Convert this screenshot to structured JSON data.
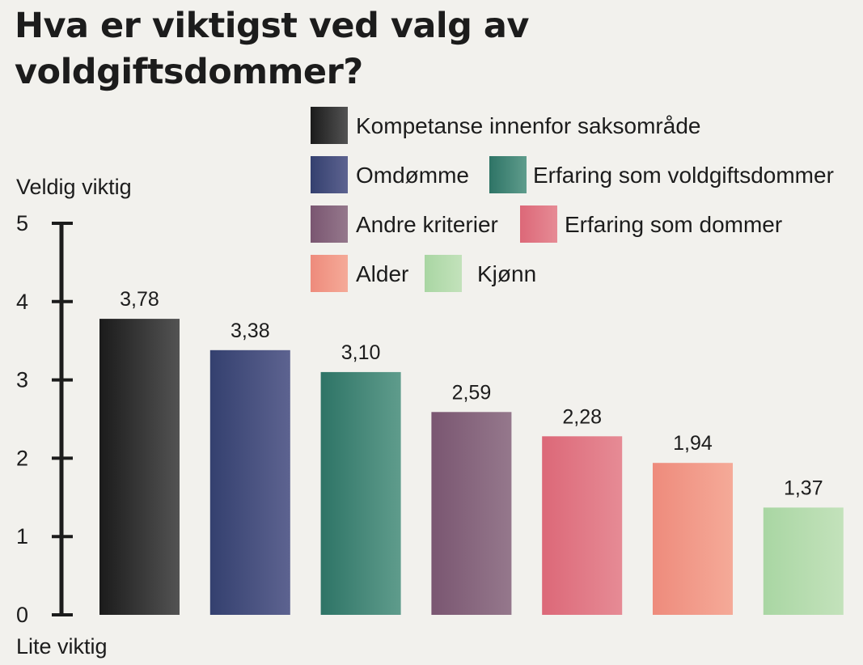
{
  "chart_data": {
    "type": "bar",
    "title": "Hva er viktigst ved valg av\nvoldgiftsdommer?",
    "y_top_label": "Veldig viktig",
    "y_bottom_label": "Lite viktig",
    "ylim": [
      0,
      5
    ],
    "yticks": [
      "0",
      "1",
      "2",
      "3",
      "4",
      "5"
    ],
    "grid": false,
    "legend_position": "top-right",
    "categories": [
      "Kompetanse innenfor saksområde",
      "Omdømme",
      "Erfaring som voldgiftsdommer",
      "Andre kriterier",
      "Erfaring som dommer",
      "Alder",
      "Kjønn"
    ],
    "values": [
      3.78,
      3.38,
      3.1,
      2.59,
      2.28,
      1.94,
      1.37
    ],
    "value_labels": [
      "3,78",
      "3,38",
      "3,10",
      "2,59",
      "2,28",
      "1,94",
      "1,37"
    ],
    "colors": [
      [
        "#1b1b1b",
        "#535353"
      ],
      [
        "#34406f",
        "#5d6390"
      ],
      [
        "#2e7466",
        "#5f9c8c"
      ],
      [
        "#7a5671",
        "#95788c"
      ],
      [
        "#dc6878",
        "#e68b95"
      ],
      [
        "#ee8b7c",
        "#f5aa98"
      ],
      [
        "#a9d6a3",
        "#c3e2bb"
      ]
    ]
  }
}
